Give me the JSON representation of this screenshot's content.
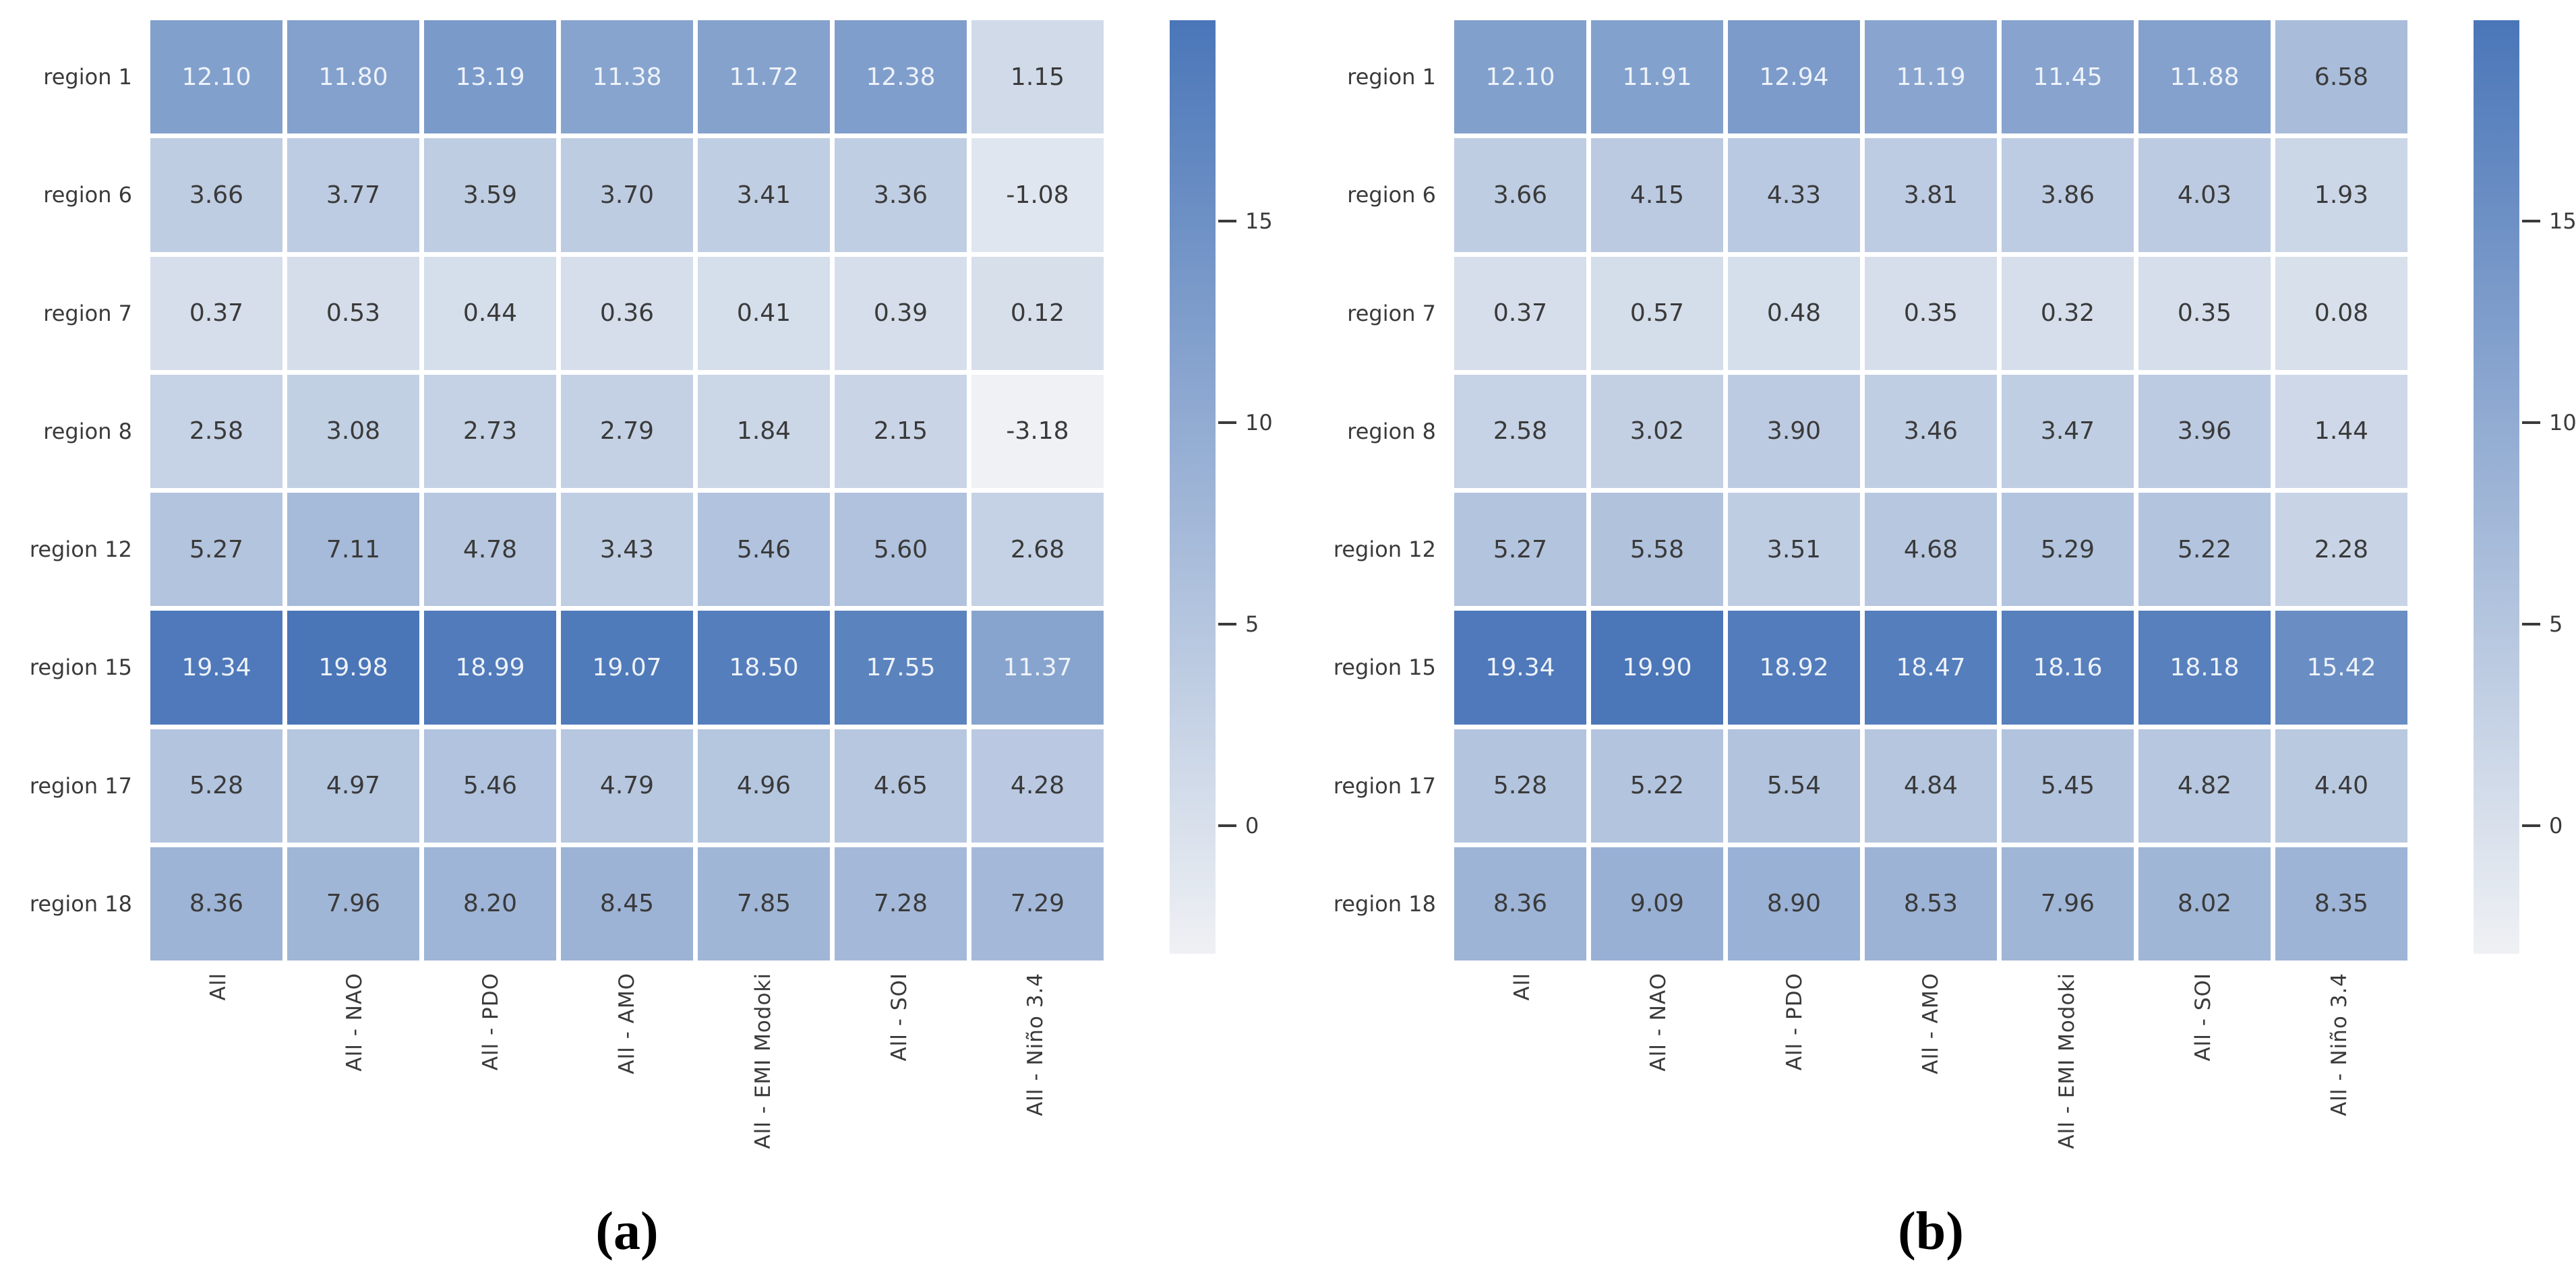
{
  "figure": {
    "background": "#ffffff",
    "captions": {
      "a": "(a)",
      "b": "(b)"
    },
    "colors": {
      "cell_min": "#eff1f4",
      "cell_max": "#4a76b8",
      "value_text_light": "#eef2f9",
      "value_text_dark": "#3a3a3a",
      "label_text": "#3a3a3a",
      "white_text_threshold": 0.6
    }
  },
  "chart_data": [
    {
      "type": "heatmap",
      "panel": "a",
      "title": "(a)",
      "rows": [
        "region 1",
        "region 6",
        "region 7",
        "region 8",
        "region 12",
        "region 15",
        "region 17",
        "region 18"
      ],
      "columns": [
        "All",
        "All - NAO",
        "All - PDO",
        "All - AMO",
        "All - EMI Modoki",
        "All - SOI",
        "All - Niño 3.4"
      ],
      "values": [
        [
          12.1,
          11.8,
          13.19,
          11.38,
          11.72,
          12.38,
          1.15
        ],
        [
          3.66,
          3.77,
          3.59,
          3.7,
          3.41,
          3.36,
          -1.08
        ],
        [
          0.37,
          0.53,
          0.44,
          0.36,
          0.41,
          0.39,
          0.12
        ],
        [
          2.58,
          3.08,
          2.73,
          2.79,
          1.84,
          2.15,
          -3.18
        ],
        [
          5.27,
          7.11,
          4.78,
          3.43,
          5.46,
          5.6,
          2.68
        ],
        [
          19.34,
          19.98,
          18.99,
          19.07,
          18.5,
          17.55,
          11.37
        ],
        [
          5.28,
          4.97,
          5.46,
          4.79,
          4.96,
          4.65,
          4.28
        ],
        [
          8.36,
          7.96,
          8.2,
          8.45,
          7.85,
          7.28,
          7.29
        ]
      ],
      "colorbar": {
        "ticks": [
          15,
          10,
          5,
          0
        ],
        "vmin": -3.18,
        "vmax": 19.98
      },
      "legend_position": "right",
      "xlabel": "",
      "ylabel": ""
    },
    {
      "type": "heatmap",
      "panel": "b",
      "title": "(b)",
      "rows": [
        "region 1",
        "region 6",
        "region 7",
        "region 8",
        "region 12",
        "region 15",
        "region 17",
        "region 18"
      ],
      "columns": [
        "All",
        "All - NAO",
        "All - PDO",
        "All - AMO",
        "All - EMI Modoki",
        "All - SOI",
        "All - Niño 3.4"
      ],
      "values": [
        [
          12.1,
          11.91,
          12.94,
          11.19,
          11.45,
          11.88,
          6.58
        ],
        [
          3.66,
          4.15,
          4.33,
          3.81,
          3.86,
          4.03,
          1.93
        ],
        [
          0.37,
          0.57,
          0.48,
          0.35,
          0.32,
          0.35,
          0.08
        ],
        [
          2.58,
          3.02,
          3.9,
          3.46,
          3.47,
          3.96,
          1.44
        ],
        [
          5.27,
          5.58,
          3.51,
          4.68,
          5.29,
          5.22,
          2.28
        ],
        [
          19.34,
          19.9,
          18.92,
          18.47,
          18.16,
          18.18,
          15.42
        ],
        [
          5.28,
          5.22,
          5.54,
          4.84,
          5.45,
          4.82,
          4.4
        ],
        [
          8.36,
          9.09,
          8.9,
          8.53,
          7.96,
          8.02,
          8.35
        ]
      ],
      "colorbar": {
        "ticks": [
          15,
          10,
          5,
          0
        ],
        "vmin": -3.18,
        "vmax": 19.98
      },
      "legend_position": "right",
      "xlabel": "",
      "ylabel": ""
    }
  ]
}
